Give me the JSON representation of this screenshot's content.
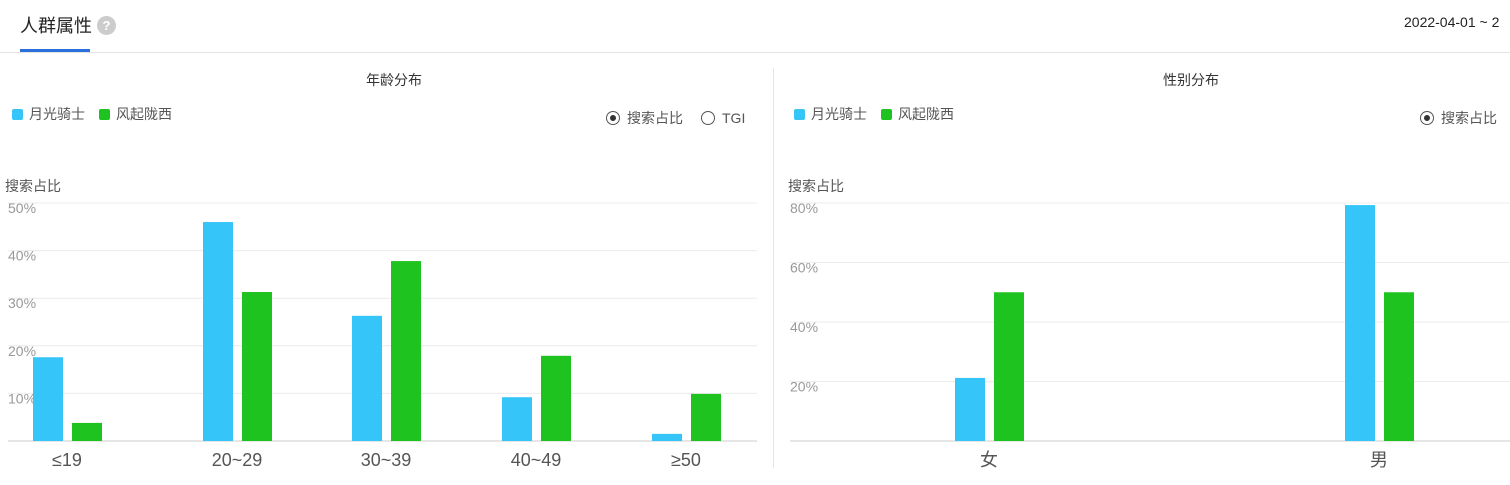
{
  "header": {
    "tab_label": "人群属性",
    "help_icon": "question-circle-icon",
    "date_range": "2022-04-01 ~ 2"
  },
  "colors": {
    "series1": "#36c5f8",
    "series2": "#1fc31f",
    "accent": "#2b6fdc"
  },
  "legend": [
    "月光骑士",
    "风起陇西"
  ],
  "radio_options": [
    {
      "label": "搜索占比",
      "selected": true
    },
    {
      "label": "TGI",
      "selected": false
    }
  ],
  "chart_data": [
    {
      "type": "bar",
      "title": "年龄分布",
      "ylabel": "搜索占比",
      "categories": [
        "≤19",
        "20~29",
        "30~39",
        "40~49",
        "≥50"
      ],
      "yticks": [
        "10%",
        "20%",
        "30%",
        "40%",
        "50%"
      ],
      "ylim": [
        0,
        50
      ],
      "grid": true,
      "legend": "top-left",
      "series": [
        {
          "name": "月光骑士",
          "values": [
            17.6,
            46,
            26.3,
            9.2,
            1.5
          ]
        },
        {
          "name": "风起陇西",
          "values": [
            3.8,
            31.3,
            37.8,
            17.9,
            9.9
          ]
        }
      ]
    },
    {
      "type": "bar",
      "title": "性别分布",
      "ylabel": "搜索占比",
      "categories": [
        "女",
        "男"
      ],
      "yticks": [
        "20%",
        "40%",
        "60%",
        "80%"
      ],
      "ylim": [
        0,
        80
      ],
      "grid": true,
      "legend": "top-left",
      "series": [
        {
          "name": "月光骑士",
          "values": [
            21.2,
            79.3
          ]
        },
        {
          "name": "风起陇西",
          "values": [
            50,
            50
          ]
        }
      ]
    }
  ]
}
